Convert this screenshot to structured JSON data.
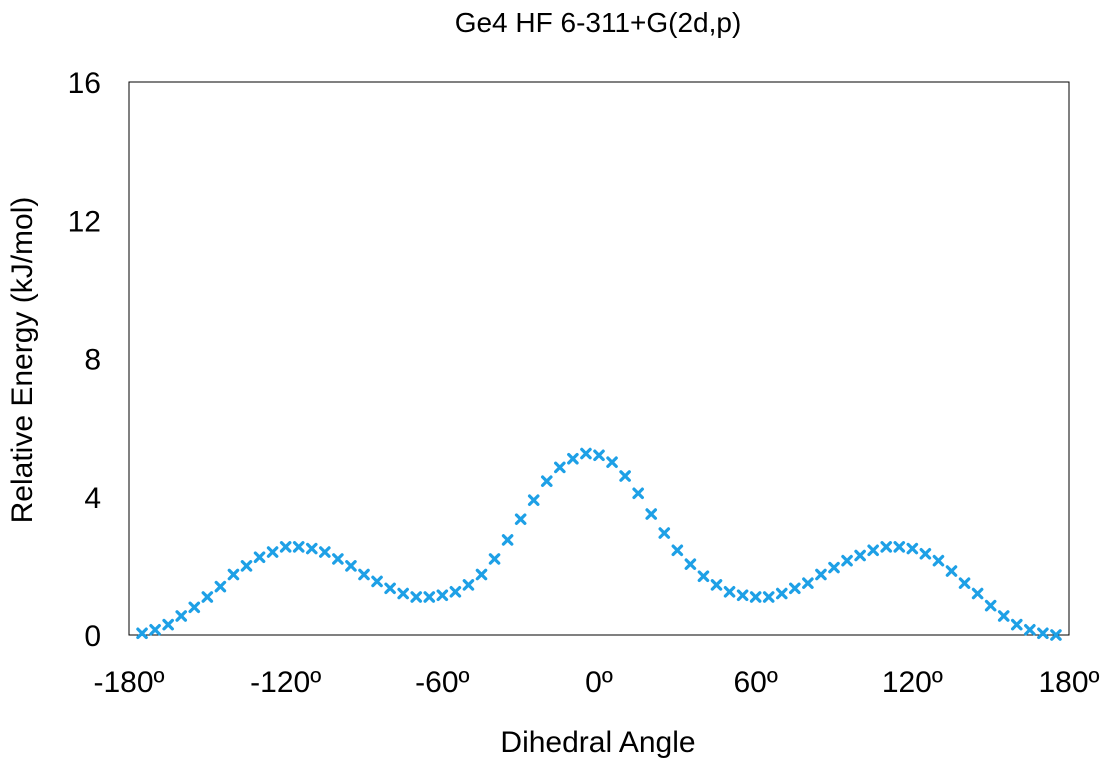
{
  "chart_data": {
    "type": "scatter",
    "title": "Ge4 HF 6-311+G(2d,p)",
    "xlabel": "Dihedral Angle",
    "ylabel": "Relative Energy (kJ/mol)",
    "xlim": [
      -180,
      180
    ],
    "ylim": [
      0,
      16
    ],
    "x_ticks": [
      -180,
      -120,
      -60,
      0,
      60,
      120,
      180
    ],
    "x_tick_labels": [
      "-180º",
      "-120º",
      "-60º",
      "0º",
      "60º",
      "120º",
      "180º"
    ],
    "y_ticks": [
      0,
      4,
      8,
      12,
      16
    ],
    "y_tick_labels": [
      "0",
      "4",
      "8",
      "12",
      "16"
    ],
    "grid": false,
    "legend": "none",
    "marker": "x",
    "marker_color": "#1ea0e6",
    "series": [
      {
        "x": [
          -175,
          -170,
          -165,
          -160,
          -155,
          -150,
          -145,
          -140,
          -135,
          -130,
          -125,
          -120,
          -115,
          -110,
          -105,
          -100,
          -95,
          -90,
          -85,
          -80,
          -75,
          -70,
          -65,
          -60,
          -55,
          -50,
          -45,
          -40,
          -35,
          -30,
          -25,
          -20,
          -15,
          -10,
          -5,
          0,
          5,
          10,
          15,
          20,
          25,
          30,
          35,
          40,
          45,
          50,
          55,
          60,
          65,
          70,
          75,
          80,
          85,
          90,
          95,
          100,
          105,
          110,
          115,
          120,
          125,
          130,
          135,
          140,
          145,
          150,
          155,
          160,
          165,
          170,
          175
        ],
        "y": [
          0.05,
          0.15,
          0.3,
          0.55,
          0.8,
          1.1,
          1.4,
          1.75,
          2.0,
          2.25,
          2.4,
          2.55,
          2.55,
          2.5,
          2.4,
          2.2,
          2.0,
          1.75,
          1.55,
          1.35,
          1.2,
          1.1,
          1.1,
          1.15,
          1.25,
          1.45,
          1.75,
          2.2,
          2.75,
          3.35,
          3.9,
          4.45,
          4.85,
          5.1,
          5.25,
          5.2,
          5.0,
          4.6,
          4.1,
          3.5,
          2.95,
          2.45,
          2.05,
          1.7,
          1.45,
          1.25,
          1.15,
          1.1,
          1.1,
          1.2,
          1.35,
          1.5,
          1.75,
          1.95,
          2.15,
          2.3,
          2.45,
          2.55,
          2.55,
          2.5,
          2.35,
          2.15,
          1.85,
          1.5,
          1.2,
          0.85,
          0.55,
          0.3,
          0.15,
          0.05,
          0.0
        ]
      }
    ]
  }
}
